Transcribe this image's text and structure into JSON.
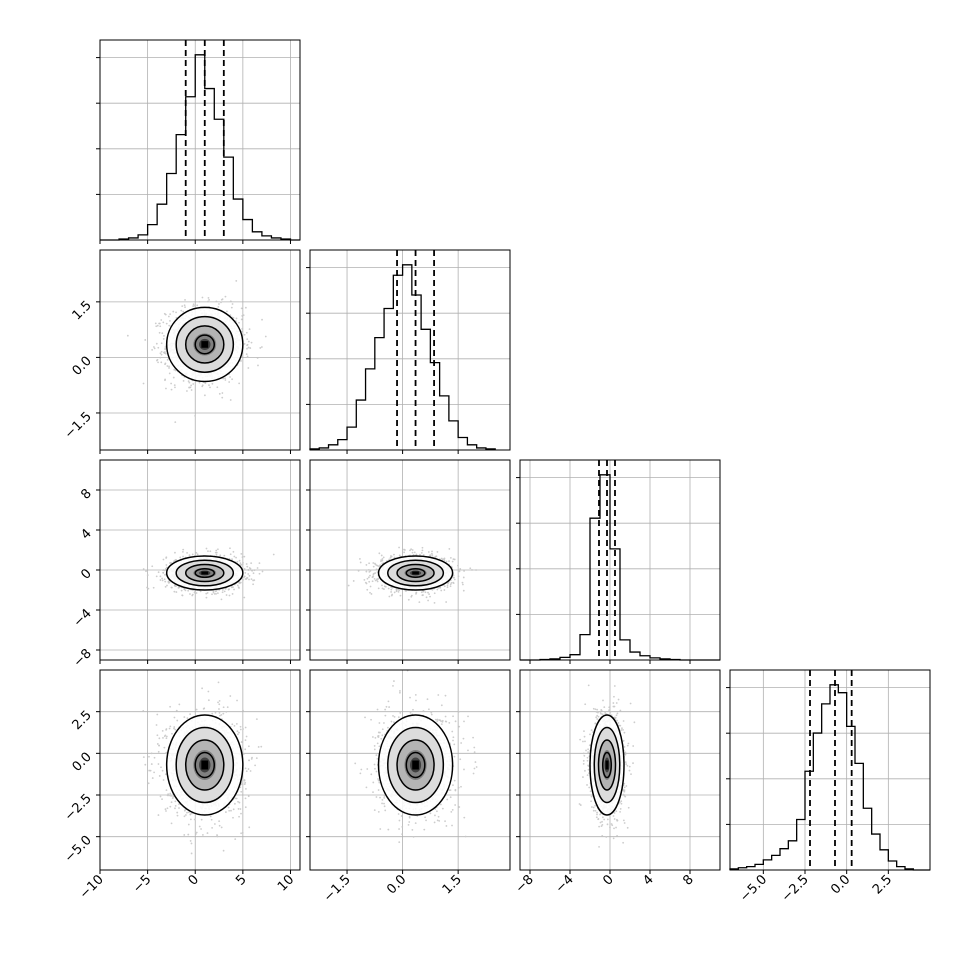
{
  "figure_type": "corner plot",
  "colors": {
    "line": "#000000",
    "grid": "#b0b0b0",
    "sample_points": "#c8c8c8",
    "density_dark": "#000000",
    "density_light": "#ffffff"
  },
  "chart_data": {
    "type": "corner",
    "grid": true,
    "parameters": [
      {
        "id": "p1",
        "range": [
          -10,
          11
        ],
        "ticks": [
          -10,
          -5,
          0,
          5,
          10
        ],
        "tick_labels": [
          "−10",
          "−5",
          "0",
          "5",
          "10"
        ],
        "mean": 1.0,
        "sd": 2.0,
        "quantiles": [
          -1.0,
          1.0,
          3.0
        ]
      },
      {
        "id": "p2",
        "range": [
          -2.5,
          2.9
        ],
        "ticks": [
          -1.5,
          0.0,
          1.5
        ],
        "tick_labels": [
          "−1.5",
          "0.0",
          "1.5"
        ],
        "mean": 0.35,
        "sd": 0.5,
        "quantiles": [
          -0.15,
          0.35,
          0.85
        ]
      },
      {
        "id": "p3",
        "range": [
          -9,
          11
        ],
        "ticks": [
          -8,
          -4,
          0,
          4,
          8
        ],
        "tick_labels": [
          "−8",
          "−4",
          "0",
          "4",
          "8"
        ],
        "mean": -0.3,
        "sd": 0.85,
        "quantiles": [
          -1.1,
          -0.3,
          0.5
        ]
      },
      {
        "id": "p4",
        "range": [
          -7,
          5
        ],
        "ticks": [
          -5.0,
          -2.5,
          0.0,
          2.5
        ],
        "tick_labels": [
          "−5.0",
          "−2.5",
          "0.0",
          "2.5"
        ],
        "mean": -0.7,
        "sd": 1.5,
        "quantiles": [
          -2.2,
          -0.7,
          0.3
        ]
      }
    ],
    "histograms": [
      {
        "param": "p1",
        "bin_edges": [
          -10,
          -9,
          -8,
          -7,
          -6,
          -5,
          -4,
          -3,
          -2,
          -1,
          0,
          1,
          2,
          3,
          4,
          5,
          6,
          7,
          8,
          9,
          10,
          11
        ],
        "counts": [
          0,
          0,
          1,
          2,
          5,
          15,
          35,
          65,
          103,
          140,
          181,
          148,
          118,
          81,
          40,
          20,
          8,
          4,
          2,
          1,
          0
        ]
      },
      {
        "param": "p2",
        "bin_edges": [
          -2.5,
          -2.25,
          -2.0,
          -1.75,
          -1.5,
          -1.25,
          -1.0,
          -0.75,
          -0.5,
          -0.25,
          0.0,
          0.25,
          0.5,
          0.75,
          1.0,
          1.25,
          1.5,
          1.75,
          2.0,
          2.25,
          2.5
        ],
        "counts": [
          1,
          2,
          5,
          10,
          22,
          48,
          78,
          108,
          136,
          168,
          178,
          149,
          116,
          84,
          52,
          28,
          12,
          5,
          2,
          1
        ]
      },
      {
        "param": "p3",
        "bin_edges": [
          -9,
          -8,
          -7,
          -6,
          -5,
          -4,
          -3,
          -2,
          -1,
          0,
          1,
          2,
          3,
          4,
          5,
          6,
          7,
          8,
          9,
          10,
          11
        ],
        "counts": [
          0,
          0,
          1,
          2,
          5,
          10,
          48,
          268,
          350,
          210,
          38,
          15,
          8,
          4,
          2,
          1,
          0,
          0,
          0,
          0
        ]
      },
      {
        "param": "p4",
        "bin_edges": [
          -7,
          -6.5,
          -6,
          -5.5,
          -5,
          -4.5,
          -4,
          -3.5,
          -3,
          -2.5,
          -2,
          -1.5,
          -1,
          -0.5,
          0,
          0.5,
          1,
          1.5,
          2,
          2.5,
          3,
          3.5,
          4,
          4.5,
          5
        ],
        "counts": [
          1,
          2,
          3,
          5,
          9,
          13,
          19,
          26,
          45,
          88,
          122,
          148,
          165,
          158,
          128,
          95,
          55,
          32,
          18,
          8,
          3,
          1,
          0,
          0
        ]
      }
    ],
    "pairs": [
      {
        "x": "p1",
        "y": "p2",
        "corr": 0.0
      },
      {
        "x": "p1",
        "y": "p3",
        "corr": 0.0
      },
      {
        "x": "p2",
        "y": "p3",
        "corr": 0.0
      },
      {
        "x": "p1",
        "y": "p4",
        "corr": 0.0
      },
      {
        "x": "p2",
        "y": "p4",
        "corr": 0.0
      },
      {
        "x": "p3",
        "y": "p4",
        "corr": 0.0
      }
    ],
    "contour_levels_sigma": [
      0.5,
      1.0,
      1.5,
      2.0
    ]
  }
}
